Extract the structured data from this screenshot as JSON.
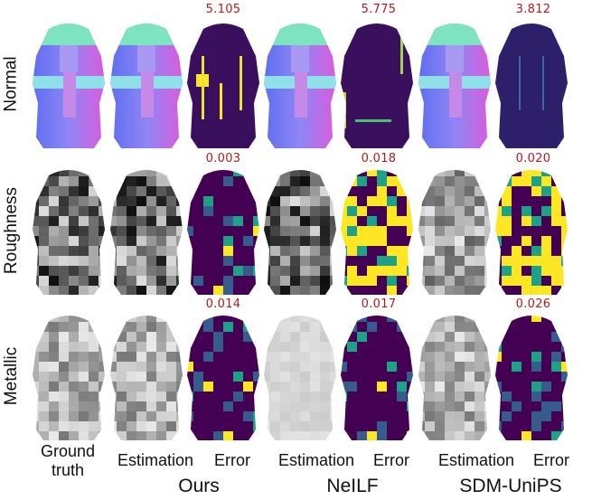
{
  "figure": {
    "rows": [
      {
        "label": "Normal",
        "metrics": {
          "ours": "5.105",
          "neilf": "5.775",
          "sdm": "3.812"
        }
      },
      {
        "label": "Roughness",
        "metrics": {
          "ours": "0.003",
          "neilf": "0.018",
          "sdm": "0.020"
        }
      },
      {
        "label": "Metallic",
        "metrics": {
          "ours": "0.014",
          "neilf": "0.017",
          "sdm": "0.026"
        }
      }
    ],
    "columns": [
      {
        "label": "Ground truth"
      },
      {
        "label": "Estimation"
      },
      {
        "label": "Error"
      },
      {
        "label": "Estimation"
      },
      {
        "label": "Error"
      },
      {
        "label": "Estimation"
      },
      {
        "label": "Error"
      }
    ],
    "column_labels": {
      "gt_line1": "Ground",
      "gt_line2": "truth",
      "est": "Estimation",
      "err": "Error"
    },
    "groups": [
      {
        "label": "Ours"
      },
      {
        "label": "NeILF"
      },
      {
        "label": "SDM-UniPS"
      }
    ],
    "colors": {
      "metric_text": "#b01c1c",
      "viridis_low": "#440154",
      "viridis_mid": "#21918c",
      "viridis_high": "#fde725"
    }
  }
}
